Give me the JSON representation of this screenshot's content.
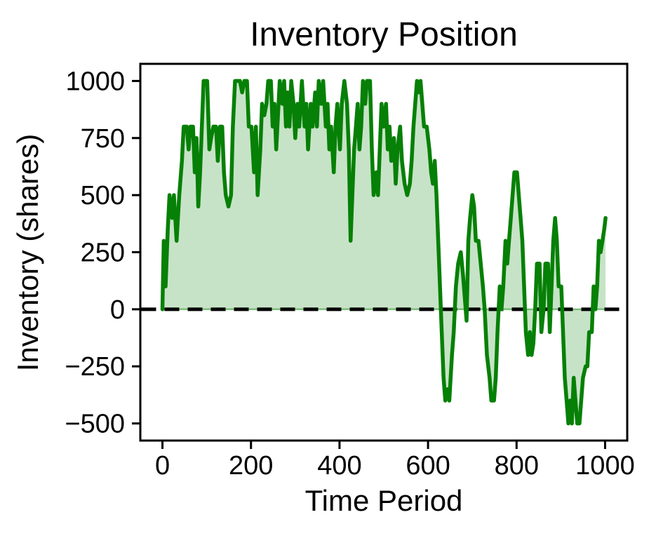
{
  "figure": {
    "title": "Inventory Position",
    "xlabel": "Time Period",
    "ylabel": "Inventory (shares)"
  },
  "chart_data": {
    "type": "area",
    "title": "Inventory Position",
    "xlabel": "Time Period",
    "ylabel": "Inventory (shares)",
    "xlim": [
      -50,
      1050
    ],
    "ylim": [
      -575,
      1075
    ],
    "grid": false,
    "legend_position": "none",
    "x_ticks": {
      "values": [
        0,
        200,
        400,
        600,
        800,
        1000
      ],
      "labels": [
        "0",
        "200",
        "400",
        "600",
        "800",
        "1000"
      ]
    },
    "y_ticks": {
      "values": [
        -500,
        -250,
        0,
        250,
        500,
        750,
        1000
      ],
      "labels": [
        "−500",
        "−250",
        "0",
        "250",
        "500",
        "750",
        "1000"
      ]
    },
    "zero_line": {
      "y": 0,
      "color": "#000000",
      "style": "dashed"
    },
    "axis_color": "#000000",
    "series": [
      {
        "name": "Inventory position",
        "line_color": "#068006",
        "fill_color": "rgba(0,128,0,0.22)",
        "fill_edge_color": "rgba(0,128,0,0.45)",
        "fill_to": 0,
        "points": [
          [
            0,
            0
          ],
          [
            3,
            300
          ],
          [
            7,
            100
          ],
          [
            12,
            350
          ],
          [
            16,
            500
          ],
          [
            22,
            400
          ],
          [
            26,
            500
          ],
          [
            32,
            300
          ],
          [
            38,
            500
          ],
          [
            44,
            650
          ],
          [
            48,
            800
          ],
          [
            55,
            800
          ],
          [
            59,
            700
          ],
          [
            63,
            800
          ],
          [
            69,
            800
          ],
          [
            73,
            600
          ],
          [
            77,
            750
          ],
          [
            81,
            450
          ],
          [
            85,
            600
          ],
          [
            89,
            800
          ],
          [
            93,
            1000
          ],
          [
            101,
            1000
          ],
          [
            106,
            700
          ],
          [
            110,
            750
          ],
          [
            115,
            800
          ],
          [
            121,
            800
          ],
          [
            125,
            650
          ],
          [
            130,
            800
          ],
          [
            135,
            800
          ],
          [
            139,
            600
          ],
          [
            143,
            500
          ],
          [
            149,
            450
          ],
          [
            155,
            500
          ],
          [
            159,
            800
          ],
          [
            164,
            1000
          ],
          [
            175,
            1000
          ],
          [
            180,
            950
          ],
          [
            185,
            1000
          ],
          [
            191,
            1000
          ],
          [
            195,
            800
          ],
          [
            201,
            800
          ],
          [
            207,
            600
          ],
          [
            211,
            800
          ],
          [
            215,
            500
          ],
          [
            221,
            700
          ],
          [
            225,
            900
          ],
          [
            230,
            850
          ],
          [
            235,
            900
          ],
          [
            239,
            1000
          ],
          [
            245,
            1000
          ],
          [
            249,
            800
          ],
          [
            253,
            900
          ],
          [
            257,
            700
          ],
          [
            261,
            850
          ],
          [
            265,
            1000
          ],
          [
            271,
            900
          ],
          [
            275,
            1000
          ],
          [
            279,
            800
          ],
          [
            283,
            950
          ],
          [
            287,
            800
          ],
          [
            291,
            1000
          ],
          [
            296,
            900
          ],
          [
            300,
            750
          ],
          [
            305,
            900
          ],
          [
            309,
            800
          ],
          [
            315,
            1000
          ],
          [
            321,
            800
          ],
          [
            325,
            900
          ],
          [
            329,
            700
          ],
          [
            335,
            900
          ],
          [
            339,
            800
          ],
          [
            345,
            950
          ],
          [
            349,
            800
          ],
          [
            353,
            1000
          ],
          [
            359,
            900
          ],
          [
            363,
            1000
          ],
          [
            369,
            800
          ],
          [
            373,
            900
          ],
          [
            377,
            700
          ],
          [
            381,
            800
          ],
          [
            387,
            600
          ],
          [
            391,
            800
          ],
          [
            395,
            900
          ],
          [
            401,
            700
          ],
          [
            405,
            900
          ],
          [
            411,
            1000
          ],
          [
            417,
            900
          ],
          [
            421,
            700
          ],
          [
            425,
            300
          ],
          [
            429,
            500
          ],
          [
            433,
            700
          ],
          [
            437,
            800
          ],
          [
            441,
            900
          ],
          [
            445,
            700
          ],
          [
            449,
            800
          ],
          [
            453,
            1000
          ],
          [
            458,
            900
          ],
          [
            462,
            1000
          ],
          [
            469,
            1000
          ],
          [
            473,
            700
          ],
          [
            477,
            500
          ],
          [
            483,
            600
          ],
          [
            487,
            500
          ],
          [
            491,
            700
          ],
          [
            495,
            900
          ],
          [
            499,
            800
          ],
          [
            505,
            900
          ],
          [
            509,
            700
          ],
          [
            513,
            800
          ],
          [
            517,
            650
          ],
          [
            523,
            750
          ],
          [
            527,
            550
          ],
          [
            531,
            700
          ],
          [
            537,
            800
          ],
          [
            541,
            650
          ],
          [
            547,
            550
          ],
          [
            553,
            500
          ],
          [
            559,
            550
          ],
          [
            563,
            650
          ],
          [
            567,
            800
          ],
          [
            571,
            900
          ],
          [
            575,
            1000
          ],
          [
            579,
            950
          ],
          [
            583,
            1000
          ],
          [
            587,
            900
          ],
          [
            591,
            800
          ],
          [
            597,
            800
          ],
          [
            603,
            700
          ],
          [
            607,
            600
          ],
          [
            611,
            550
          ],
          [
            615,
            650
          ],
          [
            619,
            500
          ],
          [
            623,
            300
          ],
          [
            627,
            100
          ],
          [
            631,
            -100
          ],
          [
            635,
            -300
          ],
          [
            639,
            -400
          ],
          [
            644,
            -350
          ],
          [
            648,
            -400
          ],
          [
            654,
            -200
          ],
          [
            658,
            -100
          ],
          [
            663,
            100
          ],
          [
            668,
            200
          ],
          [
            674,
            250
          ],
          [
            679,
            150
          ],
          [
            683,
            50
          ],
          [
            687,
            -50
          ],
          [
            691,
            300
          ],
          [
            695,
            400
          ],
          [
            700,
            500
          ],
          [
            704,
            450
          ],
          [
            708,
            300
          ],
          [
            714,
            300
          ],
          [
            719,
            200
          ],
          [
            724,
            100
          ],
          [
            728,
            0
          ],
          [
            733,
            -200
          ],
          [
            739,
            -300
          ],
          [
            743,
            -400
          ],
          [
            749,
            -400
          ],
          [
            753,
            -300
          ],
          [
            757,
            -100
          ],
          [
            762,
            100
          ],
          [
            766,
            0
          ],
          [
            770,
            100
          ],
          [
            775,
            300
          ],
          [
            779,
            200
          ],
          [
            783,
            300
          ],
          [
            787,
            400
          ],
          [
            791,
            500
          ],
          [
            795,
            600
          ],
          [
            801,
            600
          ],
          [
            805,
            500
          ],
          [
            809,
            400
          ],
          [
            813,
            300
          ],
          [
            817,
            100
          ],
          [
            821,
            -100
          ],
          [
            826,
            -200
          ],
          [
            830,
            -100
          ],
          [
            834,
            -200
          ],
          [
            838,
            -150
          ],
          [
            842,
            0
          ],
          [
            846,
            200
          ],
          [
            852,
            200
          ],
          [
            856,
            -100
          ],
          [
            861,
            0
          ],
          [
            865,
            200
          ],
          [
            871,
            200
          ],
          [
            875,
            -100
          ],
          [
            879,
            100
          ],
          [
            883,
            300
          ],
          [
            887,
            400
          ],
          [
            891,
            300
          ],
          [
            895,
            100
          ],
          [
            901,
            100
          ],
          [
            905,
            -100
          ],
          [
            909,
            -300
          ],
          [
            913,
            -400
          ],
          [
            917,
            -500
          ],
          [
            921,
            -400
          ],
          [
            925,
            -500
          ],
          [
            929,
            -300
          ],
          [
            933,
            -400
          ],
          [
            937,
            -500
          ],
          [
            942,
            -500
          ],
          [
            946,
            -400
          ],
          [
            950,
            -300
          ],
          [
            956,
            -250
          ],
          [
            960,
            -250
          ],
          [
            964,
            -100
          ],
          [
            970,
            -100
          ],
          [
            974,
            100
          ],
          [
            978,
            0
          ],
          [
            982,
            100
          ],
          [
            986,
            300
          ],
          [
            990,
            250
          ],
          [
            994,
            300
          ],
          [
            998,
            350
          ],
          [
            1001,
            400
          ]
        ]
      }
    ]
  }
}
